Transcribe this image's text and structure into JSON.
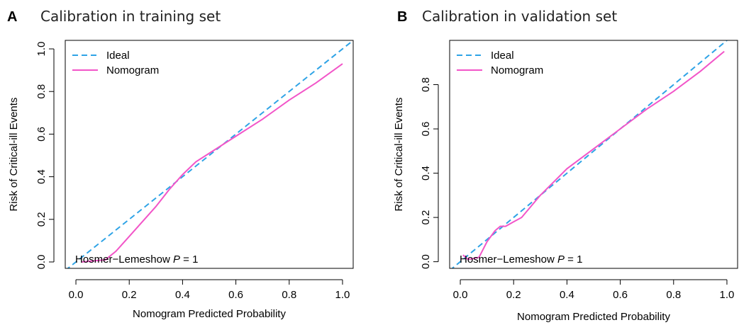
{
  "colors": {
    "ideal": "#2ea3e6",
    "nomogram": "#f255c8",
    "axis": "#000000"
  },
  "chart_data": [
    {
      "type": "line",
      "panel_letter": "A",
      "title": "Calibration in training set",
      "xlabel": "Nomogram Predicted Probability",
      "ylabel": "Risk of Critical-ill Events",
      "xlim": [
        -0.04,
        1.04
      ],
      "ylim": [
        -0.03,
        1.04
      ],
      "xticks": [
        0.0,
        0.2,
        0.4,
        0.6,
        0.8,
        1.0
      ],
      "xtick_labels": [
        "0.0",
        "0.2",
        "0.4",
        "0.6",
        "0.8",
        "1.0"
      ],
      "yticks": [
        0.0,
        0.2,
        0.4,
        0.6,
        0.8,
        1.0
      ],
      "ytick_labels": [
        "0.0",
        "0.2",
        "0.4",
        "0.6",
        "0.8",
        "1.0"
      ],
      "grid": false,
      "legend_position": "top-left",
      "annotation": {
        "prefix": "Hosmer−Lemeshow ",
        "italic": "P",
        "suffix": " = 1"
      },
      "series": [
        {
          "name": "Ideal",
          "style": "dashed",
          "color": "#2ea3e6",
          "x": [
            -0.04,
            1.04
          ],
          "y": [
            -0.04,
            1.04
          ]
        },
        {
          "name": "Nomogram",
          "style": "solid",
          "color": "#f255c8",
          "x": [
            0.02,
            0.11,
            0.15,
            0.2,
            0.25,
            0.3,
            0.35,
            0.4,
            0.45,
            0.5,
            0.6,
            0.7,
            0.8,
            0.9,
            1.0
          ],
          "y": [
            0.0,
            0.01,
            0.05,
            0.12,
            0.19,
            0.26,
            0.34,
            0.41,
            0.47,
            0.51,
            0.59,
            0.67,
            0.76,
            0.84,
            0.93
          ]
        }
      ]
    },
    {
      "type": "line",
      "panel_letter": "B",
      "title": "Calibration in validation set",
      "xlabel": "Nomogram Predicted Probability",
      "ylabel": "Risk of Critical-ill Events",
      "xlim": [
        -0.04,
        1.04
      ],
      "ylim": [
        -0.03,
        1.0
      ],
      "xticks": [
        0.0,
        0.2,
        0.4,
        0.6,
        0.8,
        1.0
      ],
      "xtick_labels": [
        "0.0",
        "0.2",
        "0.4",
        "0.6",
        "0.8",
        "1.0"
      ],
      "yticks": [
        0.0,
        0.2,
        0.4,
        0.6,
        0.8
      ],
      "ytick_labels": [
        "0.0",
        "0.2",
        "0.4",
        "0.6",
        "0.8"
      ],
      "grid": false,
      "legend_position": "top-left",
      "annotation": {
        "prefix": "Hosmer−Lemeshow ",
        "italic": "P",
        "suffix": " = 1"
      },
      "series": [
        {
          "name": "Ideal",
          "style": "dashed",
          "color": "#2ea3e6",
          "x": [
            -0.04,
            1.0
          ],
          "y": [
            -0.04,
            1.0
          ]
        },
        {
          "name": "Nomogram",
          "style": "solid",
          "color": "#f255c8",
          "x": [
            0.01,
            0.03,
            0.07,
            0.1,
            0.13,
            0.15,
            0.17,
            0.2,
            0.23,
            0.3,
            0.35,
            0.4,
            0.5,
            0.6,
            0.7,
            0.8,
            0.9,
            0.99
          ],
          "y": [
            0.03,
            0.01,
            0.02,
            0.09,
            0.14,
            0.16,
            0.16,
            0.18,
            0.2,
            0.3,
            0.36,
            0.42,
            0.51,
            0.6,
            0.69,
            0.77,
            0.86,
            0.95
          ]
        }
      ]
    }
  ]
}
